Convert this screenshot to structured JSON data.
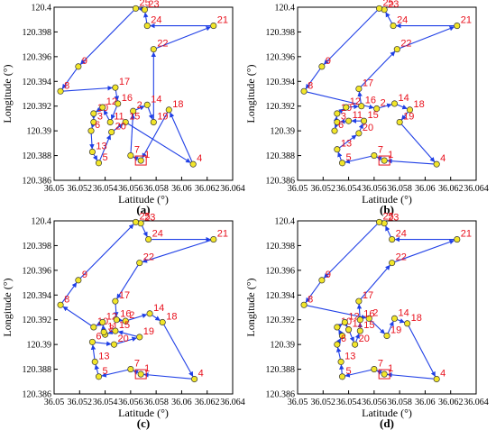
{
  "chart_data": [
    {
      "type": "scatter",
      "panel_label": "(a)",
      "xlabel": "Latitude (°)",
      "ylabel": "Longitude (°)",
      "xlim": [
        36.05,
        36.064
      ],
      "ylim": [
        120.386,
        120.4
      ],
      "xticks": [
        "36.05",
        "36.052",
        "36.054",
        "36.056",
        "36.058",
        "36.06",
        "36.062",
        "36.064"
      ],
      "yticks": [
        "120.386",
        "120.388",
        "120.39",
        "120.392",
        "120.394",
        "120.396",
        "120.398",
        "120.4"
      ],
      "start_node": "1",
      "points": [
        {
          "id": "1",
          "x": 36.0568,
          "y": 120.3876
        },
        {
          "id": "2",
          "x": 36.0562,
          "y": 120.3916
        },
        {
          "id": "3",
          "x": 36.0531,
          "y": 120.3907
        },
        {
          "id": "4",
          "x": 36.0609,
          "y": 120.3873
        },
        {
          "id": "5",
          "x": 36.0535,
          "y": 120.3874
        },
        {
          "id": "6",
          "x": 36.0529,
          "y": 120.39
        },
        {
          "id": "7",
          "x": 36.056,
          "y": 120.388
        },
        {
          "id": "8",
          "x": 36.0505,
          "y": 120.3932
        },
        {
          "id": "9",
          "x": 36.0519,
          "y": 120.3952
        },
        {
          "id": "10",
          "x": 36.0531,
          "y": 120.3914
        },
        {
          "id": "11",
          "x": 36.0544,
          "y": 120.3907
        },
        {
          "id": "12",
          "x": 36.0538,
          "y": 120.3919
        },
        {
          "id": "13",
          "x": 36.053,
          "y": 120.3883
        },
        {
          "id": "14",
          "x": 36.0573,
          "y": 120.3921
        },
        {
          "id": "15",
          "x": 36.0556,
          "y": 120.3907
        },
        {
          "id": "16",
          "x": 36.055,
          "y": 120.3922
        },
        {
          "id": "17",
          "x": 36.0548,
          "y": 120.3935
        },
        {
          "id": "18",
          "x": 36.059,
          "y": 120.3917
        },
        {
          "id": "19",
          "x": 36.0578,
          "y": 120.3907
        },
        {
          "id": "20",
          "x": 36.0545,
          "y": 120.3899
        },
        {
          "id": "21",
          "x": 36.0625,
          "y": 120.3985
        },
        {
          "id": "22",
          "x": 36.0578,
          "y": 120.3966
        },
        {
          "id": "23",
          "x": 36.0571,
          "y": 120.3998
        },
        {
          "id": "24",
          "x": 36.0573,
          "y": 120.3985
        },
        {
          "id": "25",
          "x": 36.0564,
          "y": 120.3999
        }
      ],
      "route": [
        "1",
        "7",
        "2",
        "14",
        "19",
        "22",
        "21",
        "24",
        "23",
        "25",
        "9",
        "8",
        "17",
        "16",
        "11",
        "12",
        "10",
        "3",
        "6",
        "13",
        "5",
        "20",
        "15",
        "4",
        "18",
        "1"
      ]
    },
    {
      "type": "scatter",
      "panel_label": "(b)",
      "xlabel": "Latitude (°)",
      "ylabel": "Longitude (°)",
      "xlim": [
        36.05,
        36.064
      ],
      "ylim": [
        120.386,
        120.4
      ],
      "xticks": [
        "36.05",
        "36.052",
        "36.054",
        "36.056",
        "36.058",
        "36.06",
        "36.062",
        "36.064"
      ],
      "yticks": [
        "120.386",
        "120.388",
        "120.39",
        "120.392",
        "120.394",
        "120.396",
        "120.398",
        "120.4"
      ],
      "start_node": "1",
      "points": [
        {
          "id": "1",
          "x": 36.0568,
          "y": 120.3876
        },
        {
          "id": "2",
          "x": 36.0562,
          "y": 120.3918
        },
        {
          "id": "3",
          "x": 36.0531,
          "y": 120.3907
        },
        {
          "id": "4",
          "x": 36.0609,
          "y": 120.3873
        },
        {
          "id": "5",
          "x": 36.0535,
          "y": 120.3874
        },
        {
          "id": "6",
          "x": 36.0529,
          "y": 120.39
        },
        {
          "id": "7",
          "x": 36.056,
          "y": 120.388
        },
        {
          "id": "8",
          "x": 36.0505,
          "y": 120.3932
        },
        {
          "id": "9",
          "x": 36.0519,
          "y": 120.3952
        },
        {
          "id": "10",
          "x": 36.0531,
          "y": 120.3914
        },
        {
          "id": "11",
          "x": 36.054,
          "y": 120.3908
        },
        {
          "id": "12",
          "x": 36.0538,
          "y": 120.3919
        },
        {
          "id": "13",
          "x": 36.0531,
          "y": 120.3885
        },
        {
          "id": "14",
          "x": 36.0576,
          "y": 120.3922
        },
        {
          "id": "15",
          "x": 36.0552,
          "y": 120.3908
        },
        {
          "id": "16",
          "x": 36.055,
          "y": 120.392
        },
        {
          "id": "17",
          "x": 36.0548,
          "y": 120.3934
        },
        {
          "id": "18",
          "x": 36.0588,
          "y": 120.3917
        },
        {
          "id": "19",
          "x": 36.058,
          "y": 120.3907
        },
        {
          "id": "20",
          "x": 36.0548,
          "y": 120.3898
        },
        {
          "id": "21",
          "x": 36.0625,
          "y": 120.3985
        },
        {
          "id": "22",
          "x": 36.0578,
          "y": 120.3966
        },
        {
          "id": "23",
          "x": 36.0568,
          "y": 120.3998
        },
        {
          "id": "24",
          "x": 36.0575,
          "y": 120.3985
        },
        {
          "id": "25",
          "x": 36.0564,
          "y": 120.3999
        }
      ],
      "route": [
        "1",
        "7",
        "5",
        "13",
        "20",
        "15",
        "11",
        "3",
        "6",
        "10",
        "12",
        "16",
        "17",
        "22",
        "21",
        "24",
        "23",
        "25",
        "9",
        "8",
        "2",
        "14",
        "18",
        "19",
        "4",
        "1"
      ]
    },
    {
      "type": "scatter",
      "panel_label": "(c)",
      "xlabel": "Latitude (°)",
      "ylabel": "Longitude (°)",
      "xlim": [
        36.05,
        36.064
      ],
      "ylim": [
        120.386,
        120.4
      ],
      "xticks": [
        "36.05",
        "36.052",
        "36.054",
        "36.056",
        "36.058",
        "36.06",
        "36.062",
        "36.064"
      ],
      "yticks": [
        "120.386",
        "120.388",
        "120.39",
        "120.392",
        "120.394",
        "120.396",
        "120.398",
        "120.4"
      ],
      "start_node": "1",
      "points": [
        {
          "id": "1",
          "x": 36.0568,
          "y": 120.3876
        },
        {
          "id": "2",
          "x": 36.0556,
          "y": 120.3919
        },
        {
          "id": "3",
          "x": 36.054,
          "y": 120.3908
        },
        {
          "id": "4",
          "x": 36.061,
          "y": 120.3872
        },
        {
          "id": "5",
          "x": 36.0535,
          "y": 120.3874
        },
        {
          "id": "6",
          "x": 36.053,
          "y": 120.3902
        },
        {
          "id": "7",
          "x": 36.056,
          "y": 120.388
        },
        {
          "id": "8",
          "x": 36.0505,
          "y": 120.3932
        },
        {
          "id": "9",
          "x": 36.0519,
          "y": 120.3952
        },
        {
          "id": "10",
          "x": 36.0531,
          "y": 120.3914
        },
        {
          "id": "11",
          "x": 36.0539,
          "y": 120.391
        },
        {
          "id": "12",
          "x": 36.0538,
          "y": 120.3918
        },
        {
          "id": "13",
          "x": 36.0532,
          "y": 120.3886
        },
        {
          "id": "14",
          "x": 36.0575,
          "y": 120.3925
        },
        {
          "id": "15",
          "x": 36.0548,
          "y": 120.3911
        },
        {
          "id": "16",
          "x": 36.0549,
          "y": 120.392
        },
        {
          "id": "17",
          "x": 36.0548,
          "y": 120.3935
        },
        {
          "id": "18",
          "x": 36.0585,
          "y": 120.3918
        },
        {
          "id": "19",
          "x": 36.0567,
          "y": 120.3906
        },
        {
          "id": "20",
          "x": 36.0547,
          "y": 120.39
        },
        {
          "id": "21",
          "x": 36.0625,
          "y": 120.3985
        },
        {
          "id": "22",
          "x": 36.0567,
          "y": 120.3966
        },
        {
          "id": "23",
          "x": 36.0568,
          "y": 120.3998
        },
        {
          "id": "24",
          "x": 36.0574,
          "y": 120.3985
        },
        {
          "id": "25",
          "x": 36.0564,
          "y": 120.3999
        }
      ],
      "route": [
        "1",
        "7",
        "5",
        "13",
        "6",
        "20",
        "19",
        "15",
        "3",
        "11",
        "12",
        "10",
        "8",
        "9",
        "25",
        "23",
        "24",
        "21",
        "22",
        "17",
        "16",
        "2",
        "14",
        "18",
        "4",
        "1"
      ]
    },
    {
      "type": "scatter",
      "panel_label": "(d)",
      "xlabel": "Latitude (°)",
      "ylabel": "Longitude (°)",
      "xlim": [
        36.05,
        36.064
      ],
      "ylim": [
        120.386,
        120.4
      ],
      "xticks": [
        "36.05",
        "36.052",
        "36.054",
        "36.056",
        "36.058",
        "36.06",
        "36.062",
        "36.064"
      ],
      "yticks": [
        "120.386",
        "120.388",
        "120.39",
        "120.392",
        "120.394",
        "120.396",
        "120.398",
        "120.4"
      ],
      "start_node": "1",
      "points": [
        {
          "id": "1",
          "x": 36.0568,
          "y": 120.3876
        },
        {
          "id": "2",
          "x": 36.0556,
          "y": 120.3921
        },
        {
          "id": "3",
          "x": 36.0535,
          "y": 120.3907
        },
        {
          "id": "4",
          "x": 36.0609,
          "y": 120.3872
        },
        {
          "id": "5",
          "x": 36.0535,
          "y": 120.3874
        },
        {
          "id": "6",
          "x": 36.0531,
          "y": 120.39
        },
        {
          "id": "7",
          "x": 36.056,
          "y": 120.388
        },
        {
          "id": "8",
          "x": 36.0505,
          "y": 120.3932
        },
        {
          "id": "9",
          "x": 36.0519,
          "y": 120.3952
        },
        {
          "id": "10",
          "x": 36.0531,
          "y": 120.3914
        },
        {
          "id": "11",
          "x": 36.054,
          "y": 120.3912
        },
        {
          "id": "12",
          "x": 36.0537,
          "y": 120.3918
        },
        {
          "id": "13",
          "x": 36.0534,
          "y": 120.3886
        },
        {
          "id": "14",
          "x": 36.0576,
          "y": 120.3921
        },
        {
          "id": "15",
          "x": 36.0549,
          "y": 120.3911
        },
        {
          "id": "16",
          "x": 36.0549,
          "y": 120.392
        },
        {
          "id": "17",
          "x": 36.0548,
          "y": 120.3935
        },
        {
          "id": "18",
          "x": 36.0586,
          "y": 120.3917
        },
        {
          "id": "19",
          "x": 36.057,
          "y": 120.3907
        },
        {
          "id": "20",
          "x": 36.0545,
          "y": 120.39
        },
        {
          "id": "21",
          "x": 36.0625,
          "y": 120.3985
        },
        {
          "id": "22",
          "x": 36.0574,
          "y": 120.3966
        },
        {
          "id": "23",
          "x": 36.0568,
          "y": 120.3998
        },
        {
          "id": "24",
          "x": 36.0574,
          "y": 120.3985
        },
        {
          "id": "25",
          "x": 36.0564,
          "y": 120.3999
        }
      ],
      "route": [
        "1",
        "7",
        "5",
        "13",
        "6",
        "3",
        "10",
        "12",
        "11",
        "20",
        "15",
        "16",
        "17",
        "22",
        "21",
        "24",
        "23",
        "25",
        "9",
        "8",
        "2",
        "19",
        "14",
        "18",
        "4",
        "1"
      ]
    }
  ]
}
